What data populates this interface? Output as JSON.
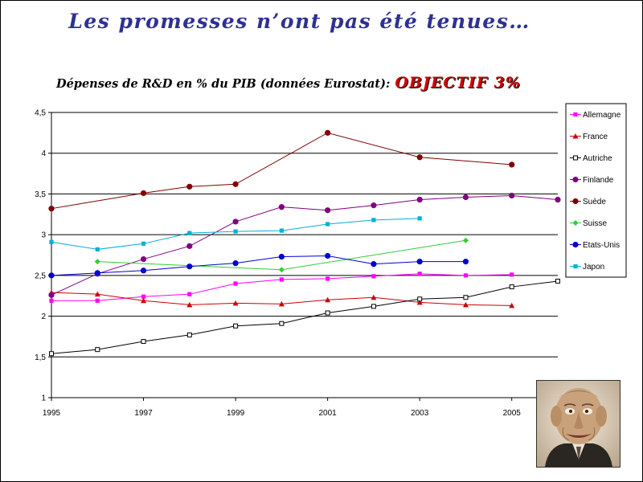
{
  "slide": {
    "title": "Les promesses n’ont pas été tenues…",
    "chart_title": "Dépenses de R&D en % du PIB (données Eurostat):",
    "goal": "OBJECTIF 3%"
  },
  "photo": {
    "icon": "caricature-portrait"
  },
  "chart_data": {
    "type": "line",
    "title": "Dépenses de R&D en % du PIB (données Eurostat):",
    "xlabel": "",
    "ylabel": "",
    "xlim": [
      1995,
      2006
    ],
    "ylim": [
      1,
      4.5
    ],
    "x_ticks": [
      1995,
      1997,
      1999,
      2001,
      2003,
      2005
    ],
    "x_tick_labels": [
      "1995",
      "1997",
      "1999",
      "2001",
      "2003",
      "2005"
    ],
    "y_ticks": [
      1,
      1.5,
      2,
      2.5,
      3,
      3.5,
      4,
      4.5
    ],
    "y_tick_labels": [
      "1",
      "1,5",
      "2",
      "2,5",
      "3",
      "3,5",
      "4",
      "4,5"
    ],
    "grid": "horizontal",
    "legend_position": "right",
    "series": [
      {
        "name": "Allemagne",
        "color": "#ff00ff",
        "marker": "square-filled",
        "x": [
          1995,
          1996,
          1997,
          1998,
          1999,
          2000,
          2001,
          2002,
          2003,
          2004,
          2005
        ],
        "y": [
          2.19,
          2.19,
          2.24,
          2.27,
          2.4,
          2.45,
          2.46,
          2.49,
          2.52,
          2.5,
          2.51
        ]
      },
      {
        "name": "France",
        "color": "#cc0000",
        "marker": "triangle",
        "x": [
          1995,
          1996,
          1997,
          1998,
          1999,
          2000,
          2001,
          2002,
          2003,
          2004,
          2005
        ],
        "y": [
          2.29,
          2.27,
          2.19,
          2.14,
          2.16,
          2.15,
          2.2,
          2.23,
          2.17,
          2.14,
          2.13
        ]
      },
      {
        "name": "Autriche",
        "color": "#000000",
        "marker": "square-open",
        "x": [
          1995,
          1996,
          1997,
          1998,
          1999,
          2000,
          2001,
          2002,
          2003,
          2004,
          2005,
          2006
        ],
        "y": [
          1.54,
          1.59,
          1.69,
          1.77,
          1.88,
          1.91,
          2.04,
          2.12,
          2.21,
          2.23,
          2.36,
          2.43
        ]
      },
      {
        "name": "Finlande",
        "color": "#800080",
        "marker": "circle",
        "x": [
          1995,
          1996,
          1997,
          1998,
          1999,
          2000,
          2001,
          2002,
          2003,
          2004,
          2005,
          2006
        ],
        "y": [
          2.26,
          2.52,
          2.7,
          2.86,
          3.16,
          3.34,
          3.3,
          3.36,
          3.43,
          3.46,
          3.48,
          3.43
        ]
      },
      {
        "name": "Suède",
        "color": "#800000",
        "marker": "circle",
        "x": [
          1995,
          1997,
          1998,
          1999,
          2001,
          2003,
          2005
        ],
        "y": [
          3.32,
          3.51,
          3.59,
          3.62,
          4.25,
          3.95,
          3.86
        ]
      },
      {
        "name": "Suisse",
        "color": "#33cc33",
        "marker": "diamond",
        "x": [
          1996,
          2000,
          2004
        ],
        "y": [
          2.67,
          2.57,
          2.93
        ]
      },
      {
        "name": "Etats-Unis",
        "color": "#0000cc",
        "marker": "circle",
        "x": [
          1995,
          1996,
          1997,
          1998,
          1999,
          2000,
          2001,
          2002,
          2003,
          2004
        ],
        "y": [
          2.5,
          2.53,
          2.56,
          2.61,
          2.65,
          2.73,
          2.74,
          2.64,
          2.67,
          2.67
        ]
      },
      {
        "name": "Japon",
        "color": "#00b0d8",
        "marker": "square-filled",
        "x": [
          1995,
          1996,
          1997,
          1998,
          1999,
          2000,
          2001,
          2002,
          2003
        ],
        "y": [
          2.91,
          2.82,
          2.89,
          3.02,
          3.04,
          3.05,
          3.13,
          3.18,
          3.2
        ]
      }
    ]
  }
}
